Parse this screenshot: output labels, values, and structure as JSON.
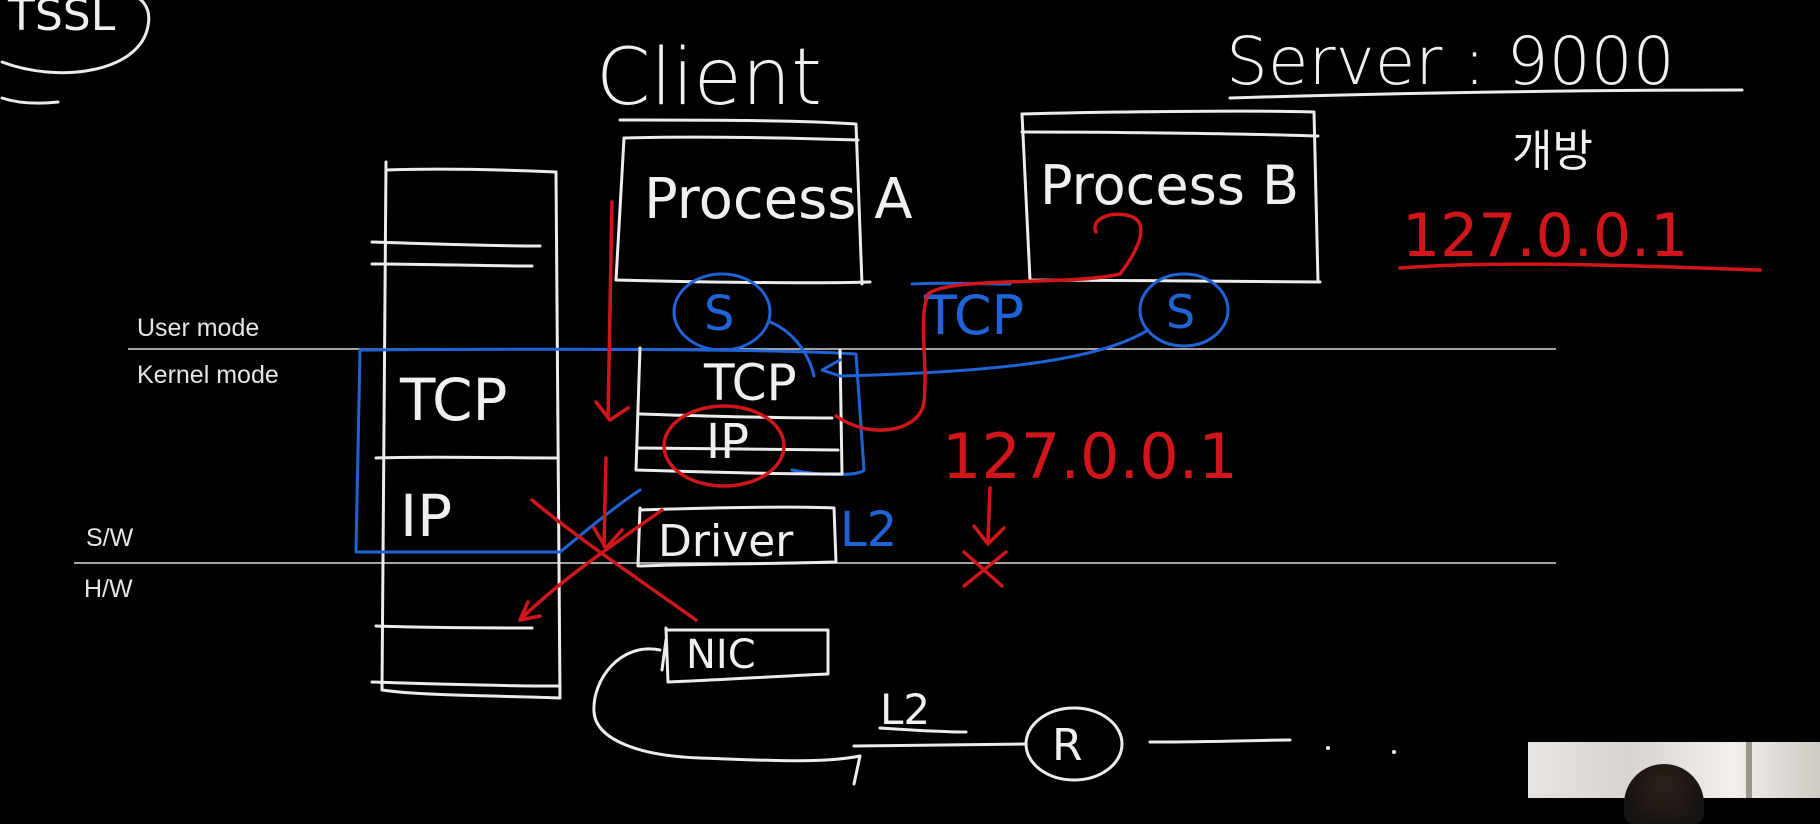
{
  "labels": {
    "user_mode": "User mode",
    "kernel_mode": "Kernel mode",
    "sw": "S/W",
    "hw": "H/W"
  },
  "handwriting": {
    "corner_fragment": "TSSL",
    "client_title": "Client",
    "server_title": "Server : 9000",
    "korean_note": "개방",
    "server_ip": "127.0.0.1",
    "process_a": "Process A",
    "process_b": "Process B",
    "socket_a": "S",
    "socket_b": "S",
    "tcp_mid": "TCP",
    "tcp_blue": "TCP",
    "ip_mid": "IP",
    "driver": "Driver",
    "l2_blue": "L2",
    "ip_red": "127.0.0.1",
    "nic": "NIC",
    "l2_bottom": "L2",
    "router": "R",
    "stack_tcp": "TCP",
    "stack_ip": "IP"
  },
  "colors": {
    "background": "#000000",
    "chalk_white": "#ececec",
    "red_marker": "#d0161a",
    "blue_marker": "#1f63d6"
  },
  "webcam": {
    "present": true
  }
}
